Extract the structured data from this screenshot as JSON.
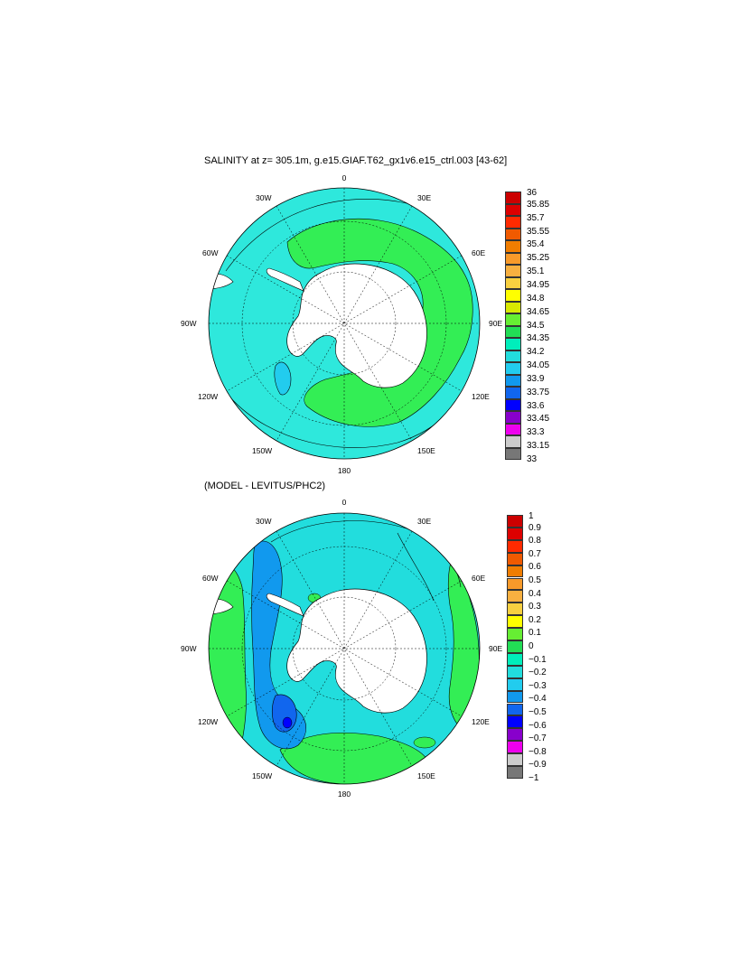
{
  "panel1": {
    "title": "SALINITY at z= 305.1m, g.e15.GIAF.T62_gx1v6.e15_ctrl.003 [43-62]",
    "colorbar": {
      "labels": [
        "36",
        "35.85",
        "35.7",
        "35.55",
        "35.4",
        "35.25",
        "35.1",
        "34.95",
        "34.8",
        "34.65",
        "34.5",
        "34.35",
        "34.2",
        "34.05",
        "33.9",
        "33.75",
        "33.6",
        "33.45",
        "33.3",
        "33.15",
        "33"
      ],
      "colors": [
        "#cc0000",
        "#dd0000",
        "#ff2a00",
        "#f05a00",
        "#f07d00",
        "#f89a2a",
        "#f8b040",
        "#f8d040",
        "#ffff00",
        "#d8e800",
        "#66ee33",
        "#22dd55",
        "#00eebb",
        "#22dddd",
        "#22ccee",
        "#1199ee",
        "#1166ee",
        "#0000ff",
        "#8800cc",
        "#ee00ee",
        "#cccccc",
        "#777777"
      ]
    },
    "fill_color": "#2ee8dc",
    "band_color": "#33ee55"
  },
  "panel2": {
    "title": "(MODEL - LEVITUS/PHC2)",
    "colorbar": {
      "labels": [
        "1",
        "0.9",
        "0.8",
        "0.7",
        "0.6",
        "0.5",
        "0.4",
        "0.3",
        "0.2",
        "0.1",
        "0",
        "−0.1",
        "−0.2",
        "−0.3",
        "−0.4",
        "−0.5",
        "−0.6",
        "−0.7",
        "−0.8",
        "−0.9",
        "−1"
      ],
      "colors": [
        "#cc0000",
        "#dd0000",
        "#ff2a00",
        "#f05a00",
        "#f07d00",
        "#f89a2a",
        "#f8b040",
        "#f8d040",
        "#ffff00",
        "#66ee33",
        "#22dd55",
        "#00eebb",
        "#22dddd",
        "#22ccee",
        "#1199ee",
        "#1166ee",
        "#0000ff",
        "#8800cc",
        "#ee00ee",
        "#cccccc",
        "#777777"
      ]
    },
    "fill_color": "#22dddd",
    "green_color": "#33ee55",
    "blue_color": "#1199ee",
    "deep_blue_color": "#0000ff"
  },
  "grid_labels": {
    "top": "0",
    "bottom": "180",
    "left": "90W",
    "right": "90E",
    "ul1": "30W",
    "ur1": "30E",
    "ul2": "60W",
    "ur2": "60E",
    "ll1": "120W",
    "lr1": "120E",
    "ll2": "150W",
    "lr2": "150E"
  }
}
